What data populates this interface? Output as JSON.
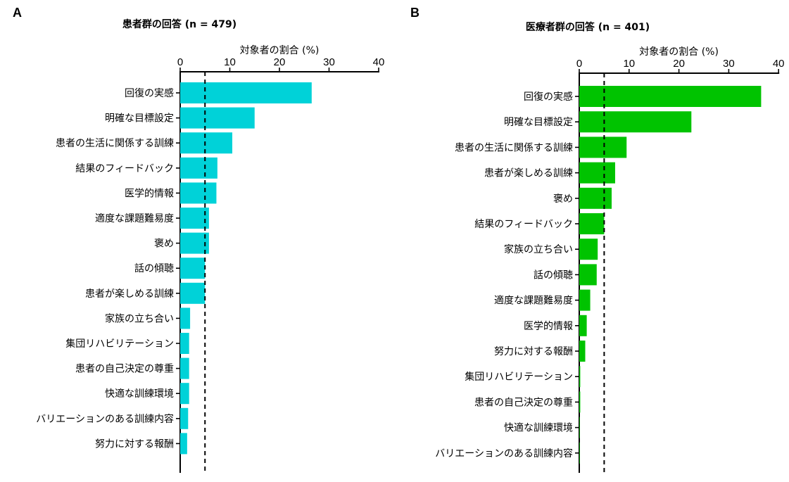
{
  "panels": [
    {
      "letter": "A",
      "title": "患者群の回答 (n = 479)",
      "xlabel": "対象者の割合 (%)",
      "color": "#00d2d8"
    },
    {
      "letter": "B",
      "title": "医療者群の回答 (n = 401)",
      "xlabel": "対象者の割合 (%)",
      "color": "#00c300"
    }
  ],
  "chart_data": [
    {
      "type": "bar",
      "orientation": "horizontal",
      "title": "患者群の回答 (n = 479)",
      "xlabel": "対象者の割合 (%)",
      "ylabel": "",
      "xlim": [
        0,
        40
      ],
      "xticks": [
        0,
        10,
        20,
        30,
        40
      ],
      "reference_line": 5,
      "color": "#00d2d8",
      "categories": [
        "回復の実感",
        "明確な目標設定",
        "患者の生活に関係する訓練",
        "結果のフィードバック",
        "医学的情報",
        "適度な課題難易度",
        "褒め",
        "話の傾聴",
        "患者が楽しめる訓練",
        "家族の立ち合い",
        "集団リハビリテーション",
        "患者の自己決定の尊重",
        "快適な訓練環境",
        "バリエーションのある訓練内容",
        "努力に対する報酬"
      ],
      "values": [
        26.5,
        15.0,
        10.5,
        7.5,
        7.3,
        5.8,
        5.8,
        5.0,
        5.0,
        2.0,
        1.8,
        1.8,
        1.8,
        1.6,
        1.4
      ]
    },
    {
      "type": "bar",
      "orientation": "horizontal",
      "title": "医療者群の回答 (n = 401)",
      "xlabel": "対象者の割合 (%)",
      "ylabel": "",
      "xlim": [
        0,
        40
      ],
      "xticks": [
        0,
        10,
        20,
        30,
        40
      ],
      "reference_line": 5,
      "color": "#00c300",
      "categories": [
        "回復の実感",
        "明確な目標設定",
        "患者の生活に関係する訓練",
        "患者が楽しめる訓練",
        "褒め",
        "結果のフィードバック",
        "家族の立ち合い",
        "話の傾聴",
        "適度な課題難易度",
        "医学的情報",
        "努力に対する報酬",
        "集団リハビリテーション",
        "患者の自己決定の尊重",
        "快適な訓練環境",
        "バリエーションのある訓練内容"
      ],
      "values": [
        36.5,
        22.5,
        9.5,
        7.2,
        6.5,
        5.0,
        3.7,
        3.5,
        2.2,
        1.5,
        1.2,
        0.2,
        0.2,
        0.1,
        0.1
      ]
    }
  ]
}
